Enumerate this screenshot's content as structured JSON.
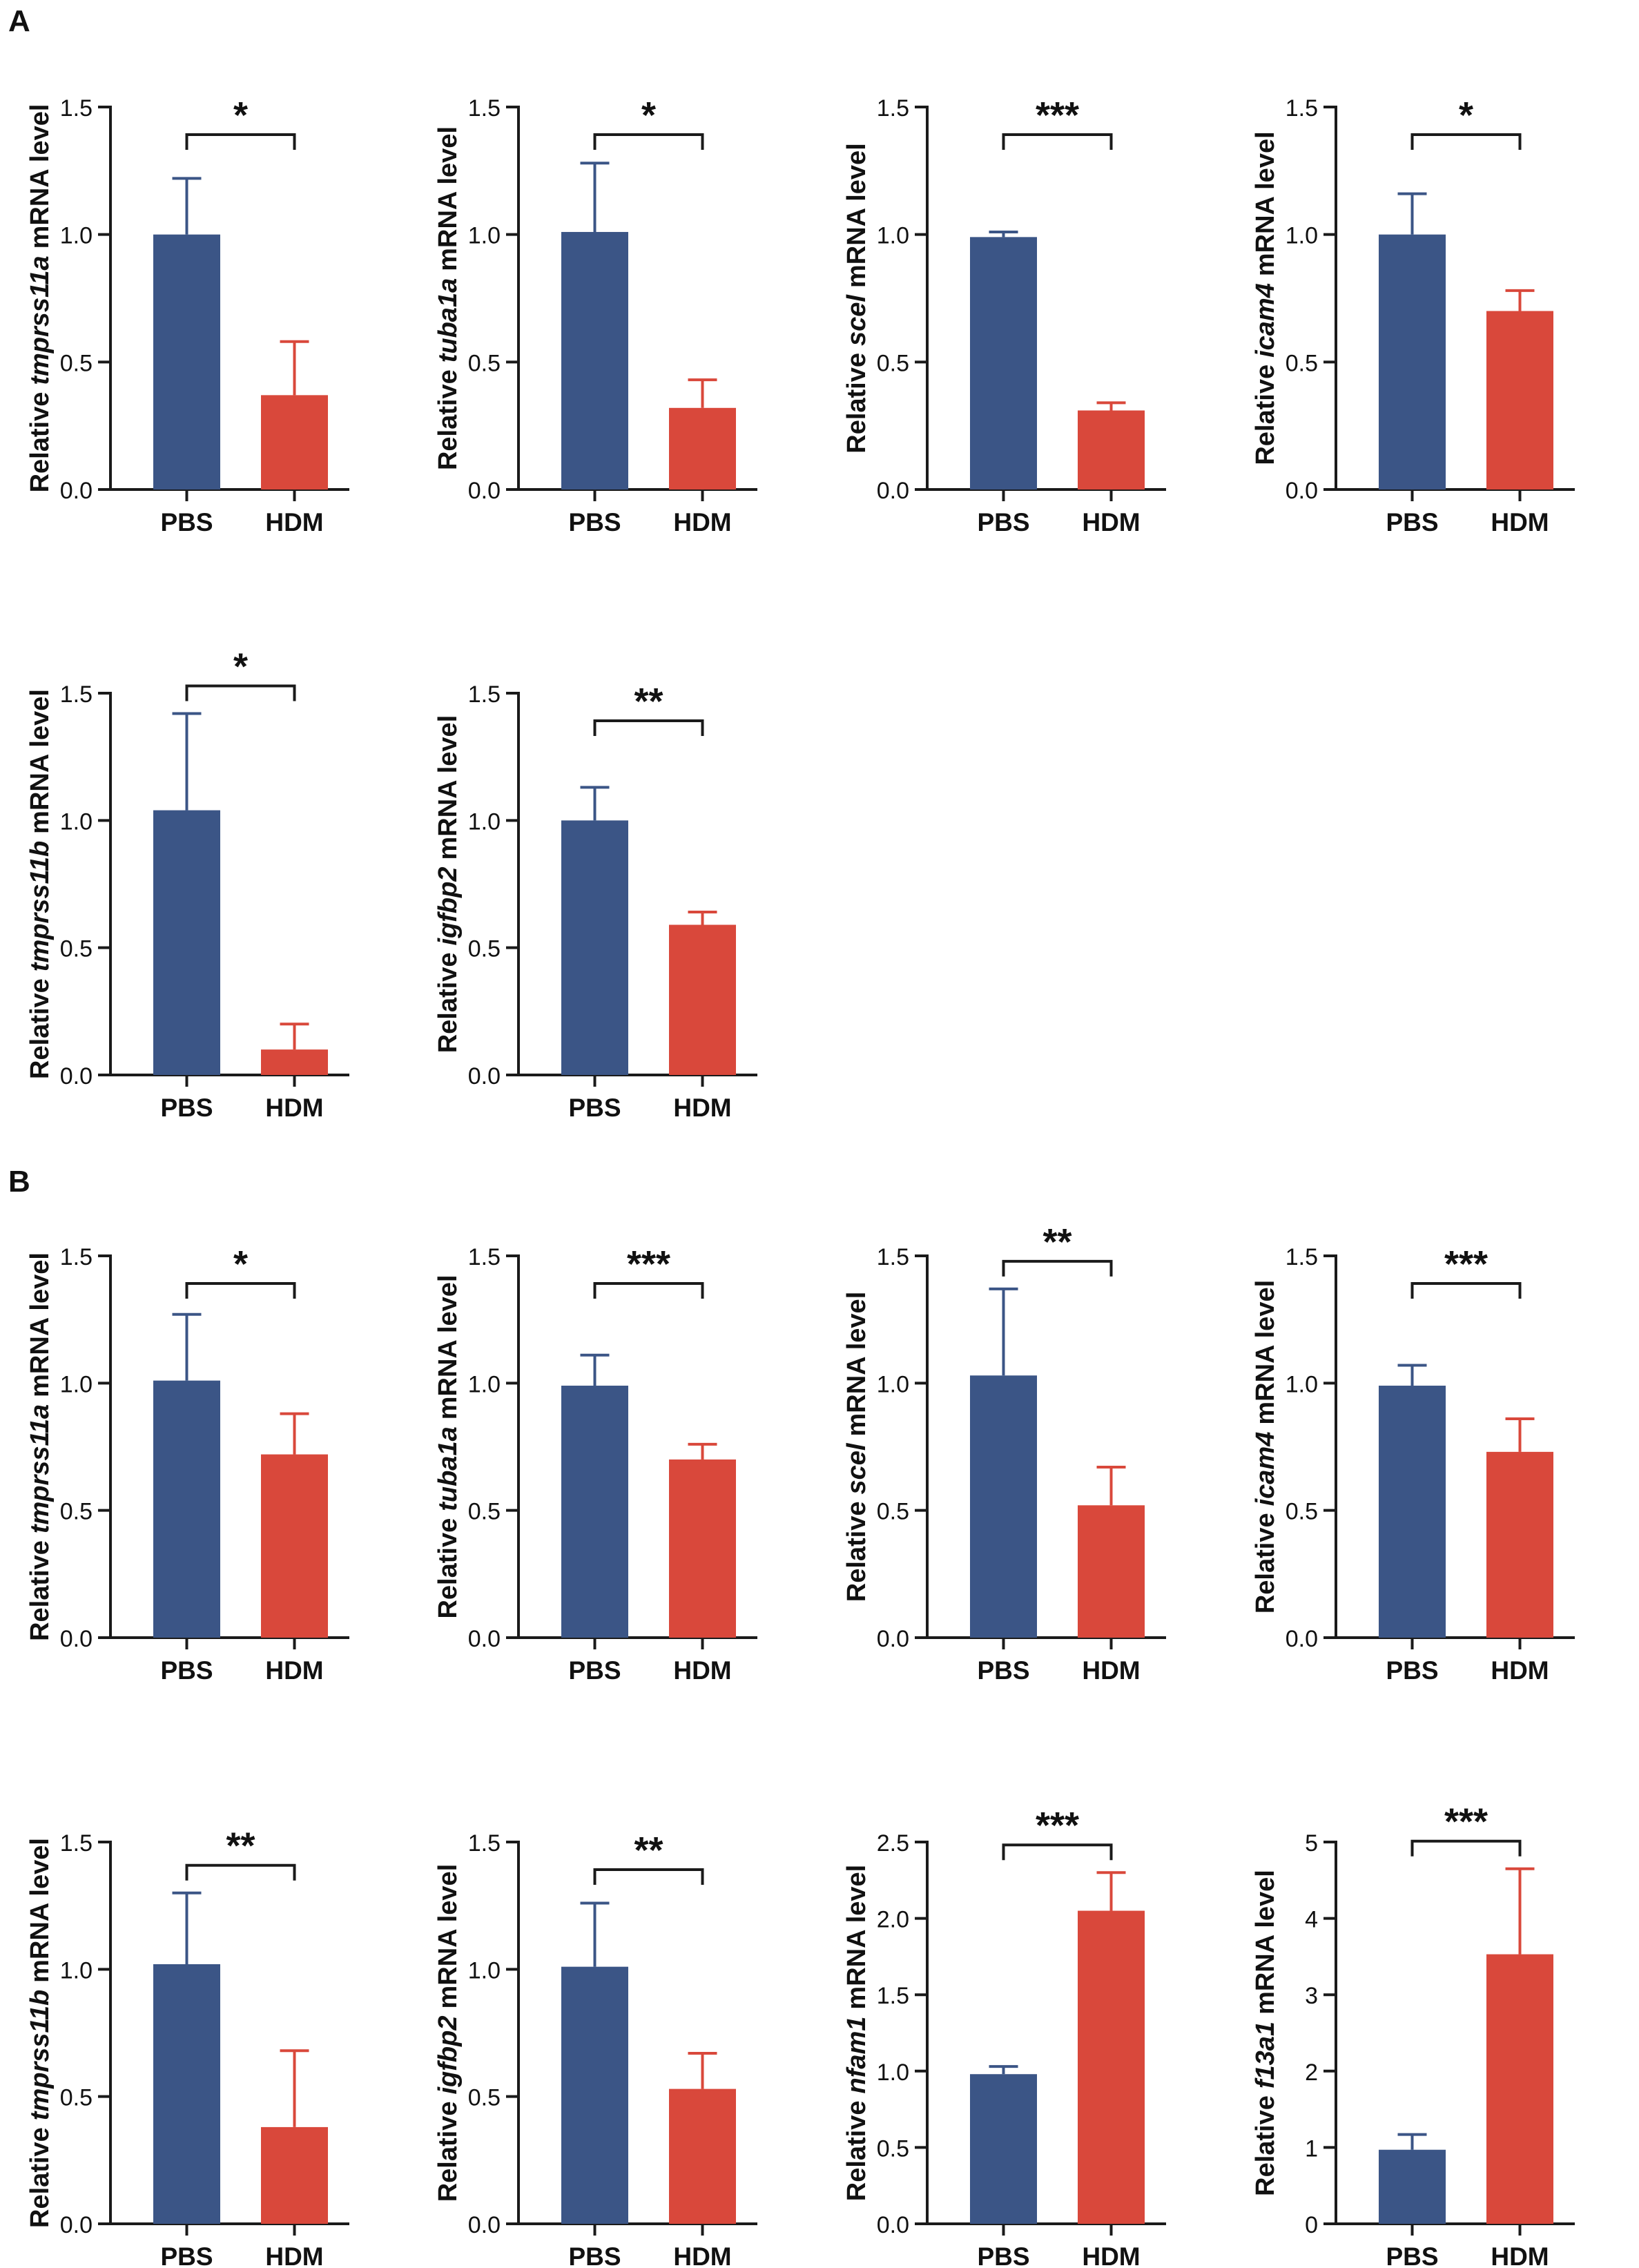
{
  "figure": {
    "colors": {
      "pbs": "#3b5586",
      "hdm": "#d9483b",
      "axis": "#1a1a1a"
    },
    "ylabel_prefix": "Relative",
    "ylabel_suffix": "mRNA level",
    "panels": [
      {
        "label": "A",
        "chart_data": [
          {
            "type": "bar",
            "gene": "tmprss11a",
            "categories": [
              "PBS",
              "HDM"
            ],
            "values": [
              1.0,
              0.37
            ],
            "errors": [
              0.22,
              0.21
            ],
            "ylim": [
              0,
              1.5
            ],
            "yticks": [
              "0.0",
              "0.5",
              "1.0",
              "1.5"
            ],
            "significance": "*"
          },
          {
            "type": "bar",
            "gene": "tuba1a",
            "categories": [
              "PBS",
              "HDM"
            ],
            "values": [
              1.01,
              0.32
            ],
            "errors": [
              0.27,
              0.11
            ],
            "ylim": [
              0,
              1.5
            ],
            "yticks": [
              "0.0",
              "0.5",
              "1.0",
              "1.5"
            ],
            "significance": "*"
          },
          {
            "type": "bar",
            "gene": "scel",
            "categories": [
              "PBS",
              "HDM"
            ],
            "values": [
              0.99,
              0.31
            ],
            "errors": [
              0.02,
              0.03
            ],
            "ylim": [
              0,
              1.5
            ],
            "yticks": [
              "0.0",
              "0.5",
              "1.0",
              "1.5"
            ],
            "significance": "***"
          },
          {
            "type": "bar",
            "gene": "icam4",
            "categories": [
              "PBS",
              "HDM"
            ],
            "values": [
              1.0,
              0.7
            ],
            "errors": [
              0.16,
              0.08
            ],
            "ylim": [
              0,
              1.5
            ],
            "yticks": [
              "0.0",
              "0.5",
              "1.0",
              "1.5"
            ],
            "significance": "*"
          },
          {
            "type": "bar",
            "gene": "tmprss11b",
            "categories": [
              "PBS",
              "HDM"
            ],
            "values": [
              1.04,
              0.1
            ],
            "errors": [
              0.38,
              0.1
            ],
            "ylim": [
              0,
              1.5
            ],
            "yticks": [
              "0.0",
              "0.5",
              "1.0",
              "1.5"
            ],
            "significance": "*"
          },
          {
            "type": "bar",
            "gene": "igfbp2",
            "categories": [
              "PBS",
              "HDM"
            ],
            "values": [
              1.0,
              0.59
            ],
            "errors": [
              0.13,
              0.05
            ],
            "ylim": [
              0,
              1.5
            ],
            "yticks": [
              "0.0",
              "0.5",
              "1.0",
              "1.5"
            ],
            "significance": "**"
          }
        ]
      },
      {
        "label": "B",
        "chart_data": [
          {
            "type": "bar",
            "gene": "tmprss11a",
            "categories": [
              "PBS",
              "HDM"
            ],
            "values": [
              1.01,
              0.72
            ],
            "errors": [
              0.26,
              0.16
            ],
            "ylim": [
              0,
              1.5
            ],
            "yticks": [
              "0.0",
              "0.5",
              "1.0",
              "1.5"
            ],
            "significance": "*"
          },
          {
            "type": "bar",
            "gene": "tuba1a",
            "categories": [
              "PBS",
              "HDM"
            ],
            "values": [
              0.99,
              0.7
            ],
            "errors": [
              0.12,
              0.06
            ],
            "ylim": [
              0,
              1.5
            ],
            "yticks": [
              "0.0",
              "0.5",
              "1.0",
              "1.5"
            ],
            "significance": "***"
          },
          {
            "type": "bar",
            "gene": "scel",
            "categories": [
              "PBS",
              "HDM"
            ],
            "values": [
              1.03,
              0.52
            ],
            "errors": [
              0.34,
              0.15
            ],
            "ylim": [
              0,
              1.5
            ],
            "yticks": [
              "0.0",
              "0.5",
              "1.0",
              "1.5"
            ],
            "significance": "**"
          },
          {
            "type": "bar",
            "gene": "icam4",
            "categories": [
              "PBS",
              "HDM"
            ],
            "values": [
              0.99,
              0.73
            ],
            "errors": [
              0.08,
              0.13
            ],
            "ylim": [
              0,
              1.5
            ],
            "yticks": [
              "0.0",
              "0.5",
              "1.0",
              "1.5"
            ],
            "significance": "***"
          },
          {
            "type": "bar",
            "gene": "tmprss11b",
            "categories": [
              "PBS",
              "HDM"
            ],
            "values": [
              1.02,
              0.38
            ],
            "errors": [
              0.28,
              0.3
            ],
            "ylim": [
              0,
              1.5
            ],
            "yticks": [
              "0.0",
              "0.5",
              "1.0",
              "1.5"
            ],
            "significance": "**"
          },
          {
            "type": "bar",
            "gene": "igfbp2",
            "categories": [
              "PBS",
              "HDM"
            ],
            "values": [
              1.01,
              0.53
            ],
            "errors": [
              0.25,
              0.14
            ],
            "ylim": [
              0,
              1.5
            ],
            "yticks": [
              "0.0",
              "0.5",
              "1.0",
              "1.5"
            ],
            "significance": "**"
          },
          {
            "type": "bar",
            "gene": "nfam1",
            "categories": [
              "PBS",
              "HDM"
            ],
            "values": [
              0.98,
              2.05
            ],
            "errors": [
              0.05,
              0.25
            ],
            "ylim": [
              0,
              2.5
            ],
            "yticks": [
              "0.0",
              "0.5",
              "1.0",
              "1.5",
              "2.0",
              "2.5"
            ],
            "significance": "***"
          },
          {
            "type": "bar",
            "gene": "f13a1",
            "categories": [
              "PBS",
              "HDM"
            ],
            "values": [
              0.97,
              3.53
            ],
            "errors": [
              0.2,
              1.12
            ],
            "ylim": [
              0,
              5
            ],
            "yticks": [
              "0",
              "1",
              "2",
              "3",
              "4",
              "5"
            ],
            "significance": "***"
          }
        ]
      }
    ]
  }
}
